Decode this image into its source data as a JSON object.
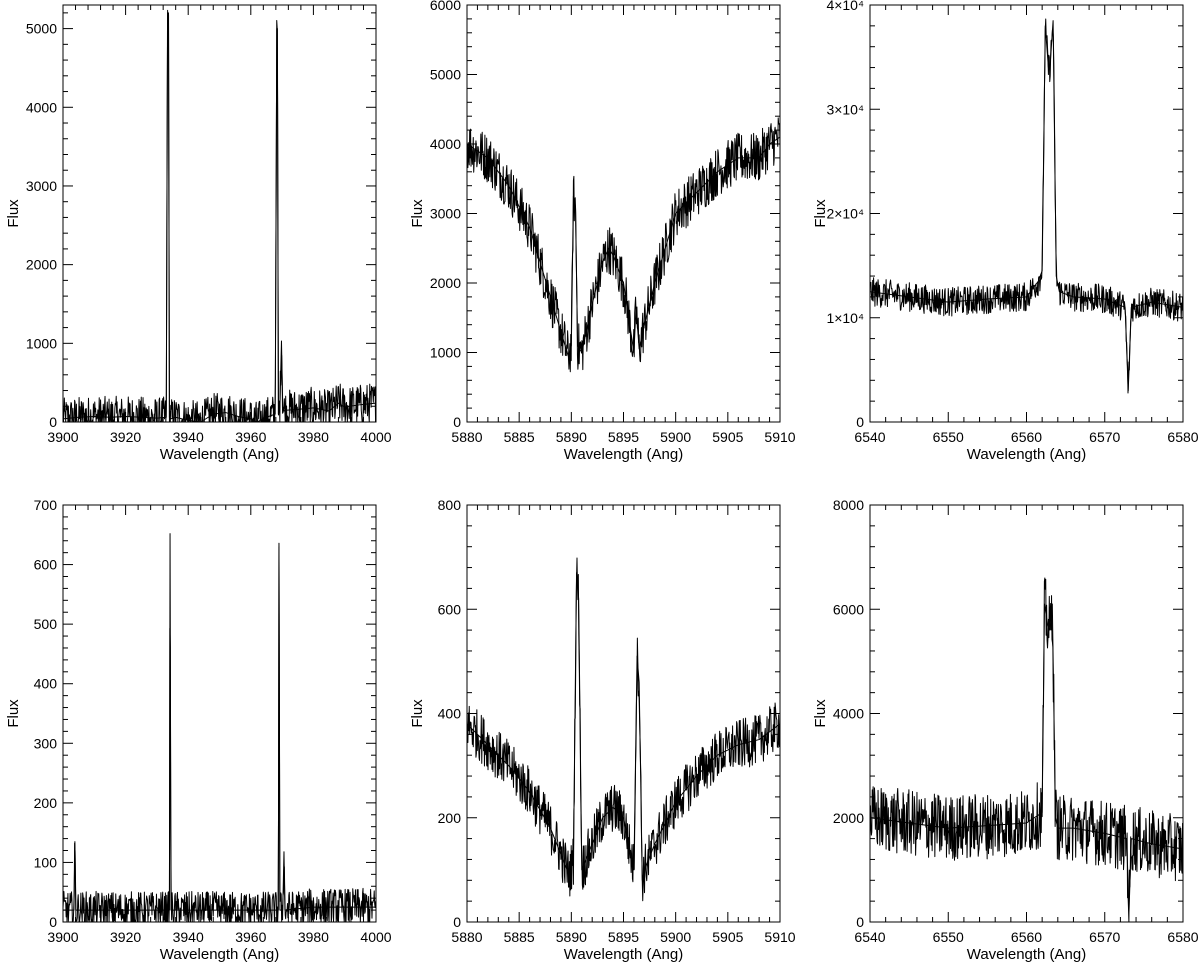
{
  "chart_data": [
    {
      "type": "line",
      "xlabel": "Wavelength (Ang)",
      "ylabel": "Flux",
      "xlim": [
        3900,
        4000
      ],
      "ylim": [
        0,
        5300
      ],
      "x_ticks": [
        3900,
        3920,
        3940,
        3960,
        3980,
        4000
      ],
      "y_ticks": [
        0,
        1000,
        2000,
        3000,
        4000,
        5000
      ],
      "y_tick_labels": [
        "0",
        "1000",
        "2000",
        "3000",
        "4000",
        "5000"
      ],
      "series": [
        {
          "x": [
            3900,
            3905,
            3910,
            3915,
            3920,
            3925,
            3930,
            3933.0,
            3933.4,
            3933.7,
            3934.0,
            3934.4,
            3936,
            3940,
            3944,
            3948,
            3952,
            3956,
            3960,
            3962,
            3965,
            3967.8,
            3968.3,
            3968.5,
            3968.8,
            3969.3,
            3969.8,
            3970.2,
            3970.6,
            3971.2,
            3975,
            3980,
            3985,
            3988,
            3990,
            3995,
            4000
          ],
          "y": [
            40,
            60,
            70,
            60,
            70,
            60,
            50,
            60,
            5200,
            5200,
            60,
            40,
            60,
            20,
            0,
            100,
            120,
            70,
            40,
            0,
            60,
            100,
            5000,
            5000,
            100,
            200,
            1030,
            200,
            140,
            150,
            160,
            180,
            140,
            240,
            190,
            220,
            240
          ]
        }
      ]
    },
    {
      "type": "line",
      "xlabel": "Wavelength (Ang)",
      "ylabel": "Flux",
      "xlim": [
        5880,
        5910
      ],
      "ylim": [
        0,
        6000
      ],
      "x_ticks": [
        5880,
        5885,
        5890,
        5895,
        5900,
        5905,
        5910
      ],
      "y_ticks": [
        0,
        1000,
        2000,
        3000,
        4000,
        5000,
        6000
      ],
      "y_tick_labels": [
        "0",
        "1000",
        "2000",
        "3000",
        "4000",
        "5000",
        "6000"
      ],
      "series": [
        {
          "x": [
            5880,
            5881,
            5882,
            5883,
            5884,
            5885,
            5886,
            5887,
            5888,
            5889,
            5889.7,
            5890.0,
            5890.2,
            5890.4,
            5890.6,
            5891,
            5892,
            5893,
            5893.6,
            5894,
            5895,
            5895.6,
            5896.0,
            5896.2,
            5896.5,
            5897,
            5898,
            5899,
            5900,
            5902,
            5904,
            5906,
            5908,
            5909,
            5910
          ],
          "y": [
            4000,
            3900,
            3800,
            3600,
            3400,
            3100,
            2800,
            2300,
            1800,
            1300,
            950,
            1100,
            3250,
            3100,
            1100,
            1000,
            1700,
            2300,
            2500,
            2400,
            2000,
            1400,
            1000,
            1650,
            1050,
            1400,
            2000,
            2500,
            3000,
            3300,
            3600,
            3800,
            3800,
            4000,
            4100
          ]
        }
      ]
    },
    {
      "type": "line",
      "xlabel": "Wavelength (Ang)",
      "ylabel": "Flux",
      "xlim": [
        6540,
        6580
      ],
      "ylim": [
        0,
        40000
      ],
      "x_ticks": [
        6540,
        6550,
        6560,
        6570,
        6580
      ],
      "y_ticks": [
        0,
        10000,
        20000,
        30000,
        40000
      ],
      "y_tick_labels": [
        "0",
        "1×10⁴",
        "2×10⁴",
        "3×10⁴",
        "4×10⁴"
      ],
      "series": [
        {
          "x": [
            6540,
            6545,
            6550,
            6555,
            6560,
            6561.5,
            6562.0,
            6562.4,
            6562.8,
            6563.0,
            6563.4,
            6563.8,
            6564.2,
            6566,
            6570,
            6572.6,
            6573.0,
            6573.4,
            6576,
            6580
          ],
          "y": [
            12500,
            12000,
            11500,
            11800,
            12000,
            13500,
            14500,
            38000,
            34000,
            34000,
            38500,
            14000,
            12500,
            12000,
            11800,
            11000,
            3000,
            11000,
            11500,
            11000
          ]
        }
      ]
    },
    {
      "type": "line",
      "xlabel": "Wavelength (Ang)",
      "ylabel": "Flux",
      "xlim": [
        3900,
        4000
      ],
      "ylim": [
        0,
        700
      ],
      "x_ticks": [
        3900,
        3920,
        3940,
        3960,
        3980,
        4000
      ],
      "y_ticks": [
        0,
        100,
        200,
        300,
        400,
        500,
        600,
        700
      ],
      "y_tick_labels": [
        "0",
        "100",
        "200",
        "300",
        "400",
        "500",
        "600",
        "700"
      ],
      "series": [
        {
          "x": [
            3900,
            3903.5,
            3903.8,
            3904.1,
            3910,
            3920,
            3930,
            3934.0,
            3934.2,
            3934.5,
            3940,
            3950,
            3960,
            3968.8,
            3969.0,
            3969.3,
            3970.2,
            3970.6,
            3970.9,
            3980,
            3990,
            4000
          ],
          "y": [
            20,
            20,
            135,
            20,
            20,
            20,
            20,
            20,
            652,
            20,
            20,
            20,
            20,
            20,
            630,
            20,
            20,
            118,
            20,
            25,
            25,
            25
          ]
        }
      ]
    },
    {
      "type": "line",
      "xlabel": "Wavelength (Ang)",
      "ylabel": "Flux",
      "xlim": [
        5880,
        5910
      ],
      "ylim": [
        0,
        800
      ],
      "x_ticks": [
        5880,
        5885,
        5890,
        5895,
        5900,
        5905,
        5910
      ],
      "y_ticks": [
        0,
        200,
        400,
        600,
        800
      ],
      "y_tick_labels": [
        "0",
        "200",
        "400",
        "600",
        "800"
      ],
      "series": [
        {
          "x": [
            5880,
            5882,
            5884,
            5886,
            5888,
            5889,
            5889.8,
            5890.2,
            5890.5,
            5890.7,
            5891,
            5892,
            5893,
            5894,
            5895,
            5896.0,
            5896.3,
            5896.5,
            5896.8,
            5897,
            5898,
            5900,
            5902,
            5904,
            5906,
            5908,
            5910
          ],
          "y": [
            380,
            340,
            300,
            250,
            180,
            130,
            90,
            120,
            670,
            620,
            100,
            150,
            200,
            220,
            200,
            100,
            510,
            460,
            80,
            100,
            150,
            230,
            280,
            320,
            340,
            350,
            380
          ]
        }
      ]
    },
    {
      "type": "line",
      "xlabel": "Wavelength (Ang)",
      "ylabel": "Flux",
      "xlim": [
        6540,
        6580
      ],
      "ylim": [
        0,
        8000
      ],
      "x_ticks": [
        6540,
        6550,
        6560,
        6570,
        6580
      ],
      "y_ticks": [
        0,
        2000,
        4000,
        6000,
        8000
      ],
      "y_tick_labels": [
        "0",
        "2000",
        "4000",
        "6000",
        "8000"
      ],
      "series": [
        {
          "x": [
            6540,
            6545,
            6550,
            6555,
            6560,
            6562.0,
            6562.3,
            6562.7,
            6563.0,
            6563.3,
            6563.7,
            6564.0,
            6566,
            6570,
            6572.8,
            6573.1,
            6573.4,
            6576,
            6580
          ],
          "y": [
            2000,
            1900,
            1800,
            1850,
            1900,
            2100,
            6100,
            5700,
            5600,
            6100,
            2000,
            1800,
            1800,
            1700,
            1600,
            200,
            1600,
            1500,
            1400
          ]
        }
      ]
    }
  ]
}
